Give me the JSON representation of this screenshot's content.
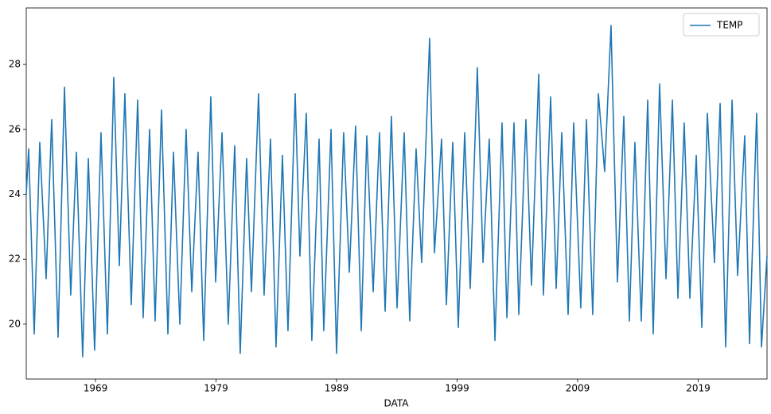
{
  "chart_data": {
    "type": "line",
    "x_label": "DATA",
    "x": [
      1963.26,
      1963.46,
      1963.92,
      1964.38,
      1964.91,
      1965.37,
      1965.9,
      1966.43,
      1966.95,
      1967.42,
      1967.94,
      1968.41,
      1968.93,
      1969.46,
      1969.99,
      1970.52,
      1970.98,
      1971.44,
      1971.97,
      1972.5,
      1972.96,
      1973.49,
      1973.95,
      1974.48,
      1975.01,
      1975.47,
      1976.0,
      1976.52,
      1976.99,
      1977.51,
      1977.98,
      1978.57,
      1978.97,
      1979.5,
      1980.02,
      1980.55,
      1981.01,
      1981.54,
      1981.94,
      1982.53,
      1982.99,
      1983.52,
      1983.98,
      1984.51,
      1984.97,
      1985.57,
      1985.96,
      1986.49,
      1986.95,
      1987.55,
      1987.94,
      1988.54,
      1989.0,
      1989.59,
      1990.06,
      1990.58,
      1991.05,
      1991.51,
      1992.04,
      1992.56,
      1993.03,
      1993.55,
      1994.02,
      1994.61,
      1995.07,
      1995.6,
      1996.06,
      1996.72,
      1997.12,
      1997.71,
      1998.11,
      1998.64,
      1999.1,
      1999.63,
      2000.09,
      2000.68,
      2001.15,
      2001.67,
      2002.14,
      2002.73,
      2003.13,
      2003.72,
      2004.12,
      2004.71,
      2005.17,
      2005.77,
      2006.16,
      2006.76,
      2007.22,
      2007.68,
      2008.21,
      2008.67,
      2009.26,
      2009.73,
      2010.25,
      2010.72,
      2011.24,
      2011.77,
      2012.3,
      2012.83,
      2013.29,
      2013.75,
      2014.28,
      2014.81,
      2015.27,
      2015.8,
      2016.33,
      2016.86,
      2017.32,
      2017.84,
      2018.31,
      2018.84,
      2019.3,
      2019.76,
      2020.35,
      2020.82,
      2021.28,
      2021.81,
      2022.27,
      2022.86,
      2023.26,
      2023.85,
      2024.25,
      2024.71
    ],
    "series": [
      {
        "name": "TEMP",
        "color": "#1f77b4",
        "values": [
          24.0,
          25.4,
          19.7,
          25.6,
          21.4,
          26.3,
          19.6,
          27.3,
          20.9,
          25.3,
          19.0,
          25.1,
          19.2,
          25.9,
          19.7,
          27.6,
          21.8,
          27.1,
          20.6,
          26.9,
          20.2,
          26.0,
          20.1,
          26.6,
          19.7,
          25.3,
          20.0,
          26.0,
          21.0,
          25.3,
          19.5,
          27.0,
          21.3,
          25.9,
          20.0,
          25.5,
          19.1,
          25.1,
          21.0,
          27.1,
          20.9,
          25.7,
          19.3,
          25.2,
          19.8,
          27.1,
          22.1,
          26.5,
          19.5,
          25.7,
          19.8,
          26.0,
          19.1,
          25.9,
          21.6,
          26.1,
          19.8,
          25.8,
          21.0,
          25.9,
          20.4,
          26.4,
          20.5,
          25.9,
          20.1,
          25.4,
          21.9,
          28.8,
          22.2,
          25.7,
          20.6,
          25.6,
          19.9,
          25.9,
          21.1,
          27.9,
          21.9,
          25.7,
          19.5,
          26.2,
          20.2,
          26.2,
          20.3,
          26.3,
          21.2,
          27.7,
          20.9,
          27.0,
          21.1,
          25.9,
          20.3,
          26.2,
          20.5,
          26.3,
          20.3,
          27.1,
          24.7,
          29.2,
          21.3,
          26.4,
          20.1,
          25.6,
          20.1,
          26.9,
          19.7,
          27.4,
          21.4,
          26.9,
          20.8,
          26.2,
          20.8,
          25.2,
          19.9,
          26.5,
          21.9,
          26.8,
          19.3,
          26.9,
          21.5,
          25.8,
          19.4,
          26.5,
          19.3,
          22.1
        ]
      }
    ],
    "xlim": [
      1963.26,
      2024.71
    ],
    "xticks": [
      1969,
      1979,
      1989,
      1999,
      2009,
      2019
    ],
    "ylim": [
      18.31,
      29.74
    ],
    "yticks": [
      20,
      22,
      24,
      26,
      28
    ],
    "legend": "upper right"
  }
}
